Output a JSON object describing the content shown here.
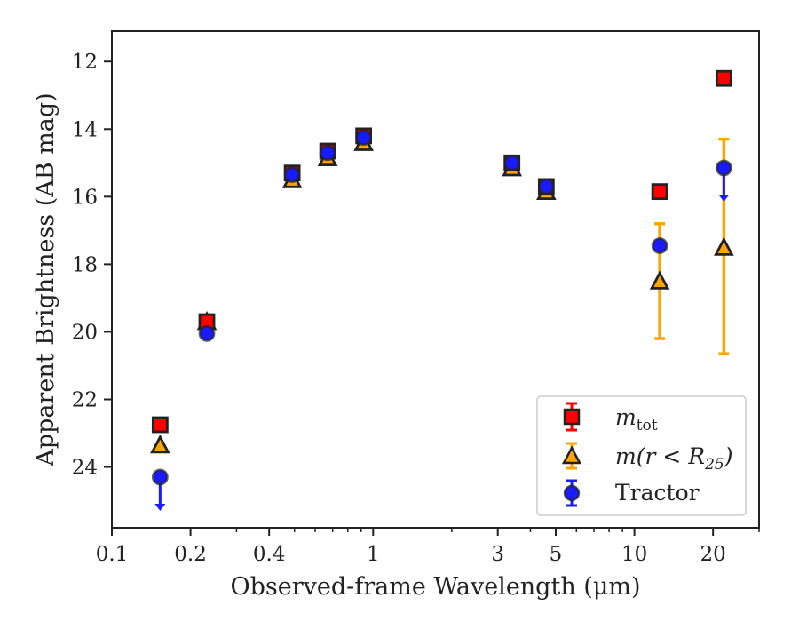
{
  "chart_data": {
    "type": "scatter",
    "xlabel": "Observed-frame Wavelength (μm)",
    "ylabel": "Apparent Brightness (AB mag)",
    "xscale": "log",
    "xlim": [
      0.1,
      30
    ],
    "ylim": [
      25.8,
      11.1
    ],
    "y_inverted": true,
    "grid": false,
    "x_ticks": [
      {
        "value": 0.1,
        "label": "0.1"
      },
      {
        "value": 0.2,
        "label": "0.2"
      },
      {
        "value": 0.4,
        "label": "0.4"
      },
      {
        "value": 1,
        "label": "1"
      },
      {
        "value": 3,
        "label": "3"
      },
      {
        "value": 5,
        "label": "5"
      },
      {
        "value": 10,
        "label": "10"
      },
      {
        "value": 20,
        "label": "20"
      }
    ],
    "y_ticks": [
      {
        "value": 12,
        "label": "12"
      },
      {
        "value": 14,
        "label": "14"
      },
      {
        "value": 16,
        "label": "16"
      },
      {
        "value": 18,
        "label": "18"
      },
      {
        "value": 20,
        "label": "20"
      },
      {
        "value": 22,
        "label": "22"
      },
      {
        "value": 24,
        "label": "24"
      }
    ],
    "legend": {
      "placement": "lower-right"
    },
    "series": [
      {
        "name": "m_tot",
        "marker": "square",
        "color": "#ff0000",
        "error_color": "#ff0000",
        "points": [
          {
            "x": 0.153,
            "y": 22.75
          },
          {
            "x": 0.231,
            "y": 19.7
          },
          {
            "x": 0.49,
            "y": 15.3
          },
          {
            "x": 0.67,
            "y": 14.65
          },
          {
            "x": 0.92,
            "y": 14.2
          },
          {
            "x": 3.4,
            "y": 15.0
          },
          {
            "x": 4.6,
            "y": 15.7
          },
          {
            "x": 12.5,
            "y": 15.85
          },
          {
            "x": 22.0,
            "y": 12.5
          }
        ]
      },
      {
        "name": "m(r < R25)",
        "marker": "triangle",
        "color": "#ffa500",
        "error_color": "#ffa500",
        "points": [
          {
            "x": 0.153,
            "y": 23.35
          },
          {
            "x": 0.231,
            "y": 19.7
          },
          {
            "x": 0.49,
            "y": 15.5
          },
          {
            "x": 0.67,
            "y": 14.85
          },
          {
            "x": 0.92,
            "y": 14.4
          },
          {
            "x": 3.4,
            "y": 15.15
          },
          {
            "x": 4.6,
            "y": 15.85
          },
          {
            "x": 12.5,
            "y": 18.5,
            "err": [
              16.8,
              20.2
            ]
          },
          {
            "x": 22.0,
            "y": 17.5,
            "err": [
              14.3,
              20.65
            ]
          }
        ]
      },
      {
        "name": "Tractor",
        "marker": "circle",
        "color": "#1a1aff",
        "error_color": "#1a1aff",
        "points": [
          {
            "x": 0.153,
            "y": 24.3,
            "upper_limit": true
          },
          {
            "x": 0.231,
            "y": 20.05
          },
          {
            "x": 0.49,
            "y": 15.35
          },
          {
            "x": 0.67,
            "y": 14.7
          },
          {
            "x": 0.92,
            "y": 14.25
          },
          {
            "x": 3.4,
            "y": 15.0
          },
          {
            "x": 4.6,
            "y": 15.7
          },
          {
            "x": 12.5,
            "y": 17.45
          },
          {
            "x": 22.0,
            "y": 15.15,
            "upper_limit": true
          }
        ]
      }
    ]
  },
  "legend_labels": {
    "m_tot_main": "m",
    "m_tot_sub": "tot",
    "mr_prefix": "m(r < R",
    "mr_sub": "25",
    "mr_suffix": ")",
    "tractor": "Tractor"
  }
}
